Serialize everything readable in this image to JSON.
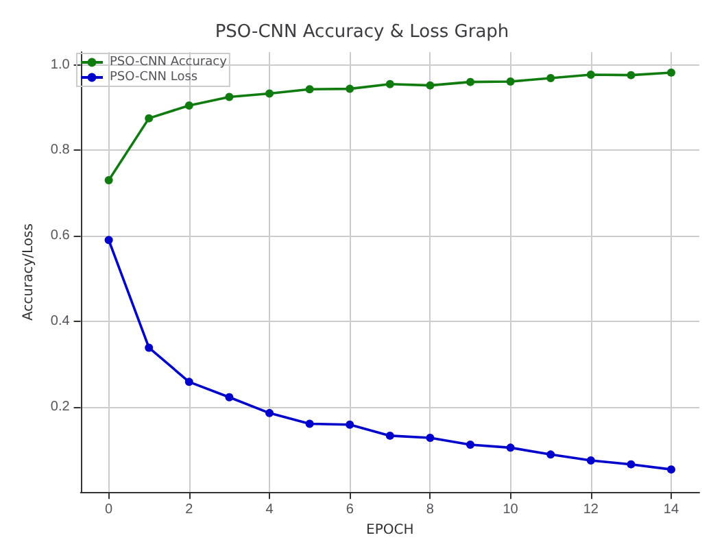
{
  "chart_data": {
    "type": "line",
    "title": "PSO-CNN Accuracy & Loss Graph",
    "xlabel": "EPOCH",
    "ylabel": "Accuracy/Loss",
    "x": [
      0,
      1,
      2,
      3,
      4,
      5,
      6,
      7,
      8,
      9,
      10,
      11,
      12,
      13,
      14
    ],
    "series": [
      {
        "name": "PSO-CNN Accuracy",
        "color": "#107c10",
        "values": [
          0.73,
          0.875,
          0.905,
          0.925,
          0.933,
          0.943,
          0.944,
          0.955,
          0.952,
          0.96,
          0.961,
          0.969,
          0.977,
          0.976,
          0.982
        ]
      },
      {
        "name": "PSO-CNN Loss",
        "color": "#0000cc",
        "values": [
          0.59,
          0.338,
          0.258,
          0.222,
          0.185,
          0.16,
          0.158,
          0.132,
          0.127,
          0.111,
          0.104,
          0.088,
          0.074,
          0.065,
          0.053
        ]
      }
    ],
    "xlim": [
      -0.7,
      14.7
    ],
    "xticks": [
      0,
      2,
      4,
      6,
      8,
      10,
      12,
      14
    ],
    "ylim": [
      0,
      1.03
    ],
    "yticks": [
      0.2,
      0.4,
      0.6,
      0.8,
      {
        "value": 1,
        "label": "1.0"
      }
    ],
    "grid": true,
    "legend": "top left",
    "marker": "circle",
    "line_style": "solid"
  }
}
